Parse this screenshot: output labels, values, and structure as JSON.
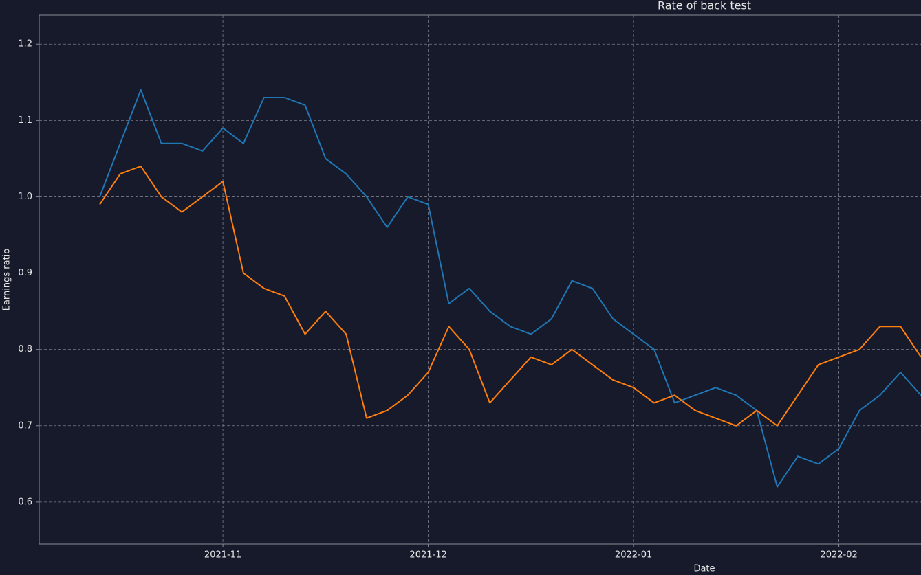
{
  "chart_data": {
    "type": "line",
    "title": "Rate of back test",
    "x_label": "Date",
    "y_label": "Earnings ratio",
    "categories": [
      null,
      null,
      null,
      null,
      null,
      null,
      "2021-11",
      null,
      null,
      null,
      null,
      null,
      null,
      null,
      null,
      null,
      "2021-12",
      null,
      null,
      null,
      null,
      null,
      null,
      null,
      null,
      null,
      "2022-01",
      null,
      null,
      null,
      null,
      null,
      null,
      null,
      null,
      null,
      "2022-02",
      null,
      null,
      null,
      null
    ],
    "series": [
      {
        "color": "#1f77b4",
        "values": [
          1.0,
          1.07,
          1.14,
          1.07,
          1.07,
          1.06,
          1.09,
          1.07,
          1.13,
          1.13,
          1.12,
          1.05,
          1.03,
          1.0,
          0.96,
          1.0,
          0.99,
          0.86,
          0.88,
          0.85,
          0.83,
          0.82,
          0.84,
          0.89,
          0.88,
          0.84,
          0.82,
          0.8,
          0.73,
          0.74,
          0.75,
          0.74,
          0.72,
          0.62,
          0.66,
          0.65,
          0.67,
          0.72,
          0.74,
          0.77,
          0.74
        ]
      },
      {
        "color": "#ff7f0e",
        "values": [
          0.99,
          1.03,
          1.04,
          1.0,
          0.98,
          1.0,
          1.02,
          0.9,
          0.88,
          0.87,
          0.82,
          0.85,
          0.82,
          0.71,
          0.72,
          0.74,
          0.77,
          0.83,
          0.8,
          0.73,
          0.76,
          0.79,
          0.78,
          0.8,
          0.78,
          0.76,
          0.75,
          0.73,
          0.74,
          0.72,
          0.71,
          0.7,
          0.72,
          0.7,
          0.74,
          0.78,
          0.79,
          0.8,
          0.83,
          0.83,
          0.79
        ]
      }
    ],
    "ylim": [
      0.545,
      1.238
    ],
    "yticks": [
      0.6,
      0.7,
      0.8,
      0.9,
      {
        "value": 1,
        "label": "1.0"
      },
      1.1,
      1.2
    ],
    "grid": true
  }
}
